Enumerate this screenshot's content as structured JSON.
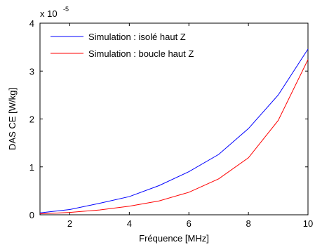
{
  "chart_data": {
    "type": "line",
    "title": "",
    "xlabel": "Fréquence [MHz]",
    "ylabel": "DAS CE [W/kg]",
    "xlim": [
      1,
      10
    ],
    "ylim": [
      0,
      4
    ],
    "y_multiplier": {
      "base": "x 10",
      "exponent": "-5"
    },
    "x_ticks": [
      2,
      4,
      6,
      8,
      10
    ],
    "y_ticks": [
      0,
      1,
      2,
      3,
      4
    ],
    "grid": false,
    "legend_position": "top-left",
    "x": [
      1,
      2,
      3,
      4,
      5,
      6,
      7,
      8,
      9,
      10
    ],
    "series": [
      {
        "name": "Simulation : isolé haut Z",
        "color": "#0000ff",
        "values": [
          0.04,
          0.11,
          0.24,
          0.38,
          0.61,
          0.9,
          1.26,
          1.8,
          2.5,
          3.46
        ]
      },
      {
        "name": "Simulation : boucle haut Z",
        "color": "#ff0000",
        "values": [
          0.02,
          0.05,
          0.1,
          0.18,
          0.29,
          0.47,
          0.75,
          1.19,
          1.97,
          3.24
        ]
      }
    ]
  }
}
